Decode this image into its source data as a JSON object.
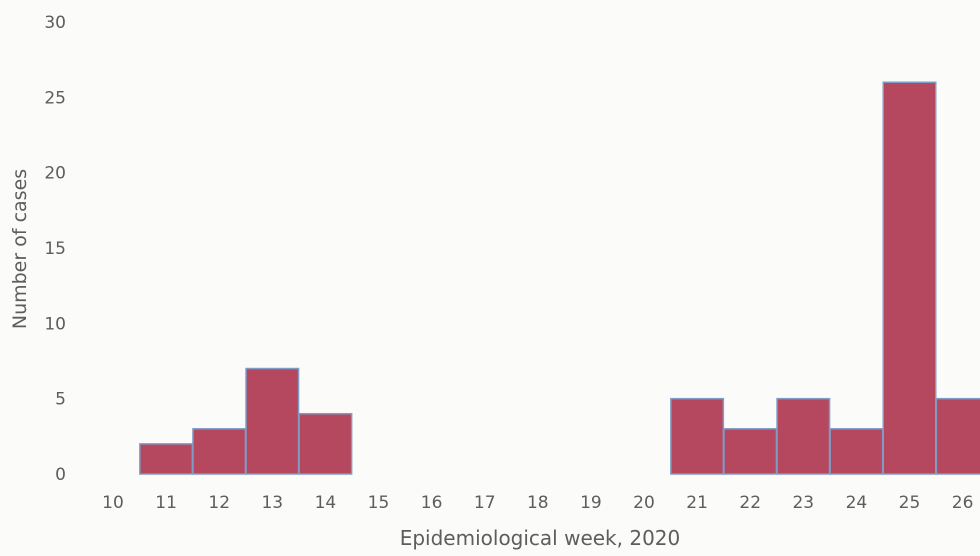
{
  "chart_data": {
    "type": "bar",
    "title": "",
    "xlabel": "Epidemiological week, 2020",
    "ylabel": "Number of cases",
    "categories": [
      "10",
      "11",
      "12",
      "13",
      "14",
      "15",
      "16",
      "17",
      "18",
      "19",
      "20",
      "21",
      "22",
      "23",
      "24",
      "25",
      "26"
    ],
    "values": [
      0,
      2,
      3,
      7,
      4,
      0,
      0,
      0,
      0,
      0,
      0,
      5,
      3,
      5,
      3,
      26,
      5
    ],
    "yticks": [
      "0",
      "5",
      "10",
      "15",
      "20",
      "25",
      "30"
    ],
    "ylim": [
      0,
      30
    ],
    "grid": false,
    "legend": "none",
    "bar_color": "#b5485f",
    "bar_edge_color": "#7f9cc4"
  }
}
